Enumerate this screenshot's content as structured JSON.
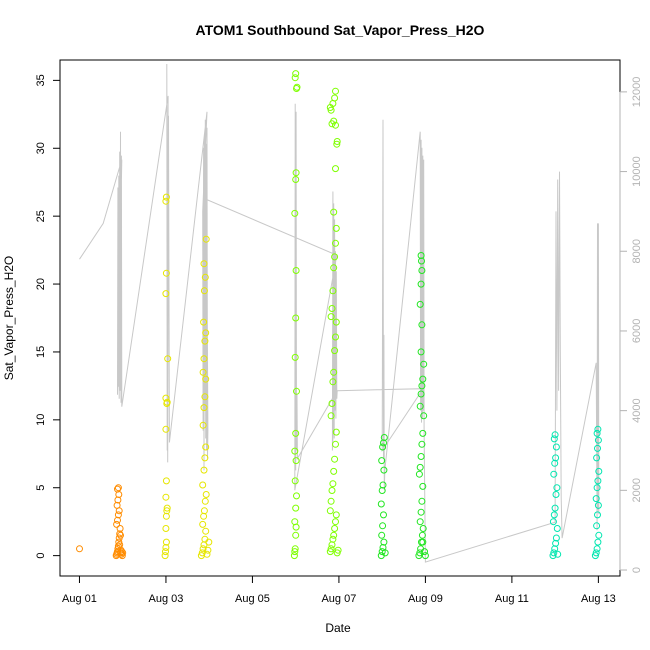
{
  "chart_data": {
    "type": "scatter",
    "title": "ATOM1 Southbound Sat_Vapor_Press_H2O",
    "xlabel": "Date",
    "ylabel": "Sat_Vapor_Press_H2O",
    "x_tick_labels": [
      "Aug 01",
      "Aug 03",
      "Aug 05",
      "Aug 07",
      "Aug 09",
      "Aug 11",
      "Aug 13"
    ],
    "x_tick_days": [
      1,
      3,
      5,
      7,
      9,
      11,
      13
    ],
    "xlim": [
      0.55,
      13.5
    ],
    "ylim": [
      -1.5,
      36.5
    ],
    "y_ticks": [
      0,
      5,
      10,
      15,
      20,
      25,
      30,
      35
    ],
    "y2lim": [
      -150,
      12800
    ],
    "y2_ticks": [
      0,
      2000,
      4000,
      6000,
      8000,
      10000,
      12000
    ],
    "grid": false,
    "colors": {
      "secondary_line": "#c8c8c8",
      "right_axis": "#b3b3b3",
      "frame": "#000000"
    },
    "series": [
      {
        "color": "#ff8c00",
        "points": [
          [
            1.0,
            0.5
          ],
          [
            1.85,
            0.0
          ],
          [
            1.86,
            0.1
          ],
          [
            1.87,
            0.2
          ],
          [
            1.88,
            0.3
          ],
          [
            1.89,
            0.5
          ],
          [
            1.9,
            0.7
          ],
          [
            1.91,
            1.0
          ],
          [
            1.92,
            1.3
          ],
          [
            1.93,
            1.6
          ],
          [
            1.94,
            2.0
          ],
          [
            1.86,
            2.3
          ],
          [
            1.88,
            2.6
          ],
          [
            1.9,
            3.0
          ],
          [
            1.92,
            3.3
          ],
          [
            1.87,
            3.7
          ],
          [
            1.89,
            4.1
          ],
          [
            1.91,
            4.5
          ],
          [
            1.88,
            4.9
          ],
          [
            1.9,
            5.0
          ],
          [
            1.95,
            0.2
          ],
          [
            1.96,
            0.4
          ],
          [
            1.97,
            0.1
          ],
          [
            1.98,
            0.3
          ],
          [
            1.99,
            0.0
          ],
          [
            2.0,
            0.2
          ],
          [
            1.93,
            0.8
          ],
          [
            1.95,
            1.5
          ]
        ]
      },
      {
        "color": "#e6e600",
        "points": [
          [
            2.98,
            0.0
          ],
          [
            2.99,
            0.3
          ],
          [
            3.0,
            0.6
          ],
          [
            3.01,
            1.0
          ],
          [
            3.0,
            2.0
          ],
          [
            3.01,
            2.9
          ],
          [
            3.02,
            3.3
          ],
          [
            3.03,
            3.5
          ],
          [
            3.0,
            4.3
          ],
          [
            3.01,
            5.5
          ],
          [
            3.0,
            9.3
          ],
          [
            3.02,
            11.2
          ],
          [
            3.0,
            11.6
          ],
          [
            3.03,
            11.3
          ],
          [
            3.04,
            14.5
          ],
          [
            3.0,
            19.3
          ],
          [
            3.01,
            20.8
          ],
          [
            3.0,
            26.1
          ],
          [
            3.01,
            26.4
          ],
          [
            3.82,
            0.0
          ],
          [
            3.84,
            0.2
          ],
          [
            3.86,
            0.5
          ],
          [
            3.88,
            0.8
          ],
          [
            3.9,
            1.2
          ],
          [
            3.92,
            1.8
          ],
          [
            3.85,
            2.3
          ],
          [
            3.87,
            2.9
          ],
          [
            3.89,
            3.3
          ],
          [
            3.91,
            4.0
          ],
          [
            3.93,
            4.5
          ],
          [
            3.85,
            5.2
          ],
          [
            3.88,
            6.3
          ],
          [
            3.9,
            7.2
          ],
          [
            3.92,
            8.0
          ],
          [
            3.86,
            9.6
          ],
          [
            3.88,
            10.9
          ],
          [
            3.9,
            11.7
          ],
          [
            3.92,
            13.0
          ],
          [
            3.86,
            13.5
          ],
          [
            3.88,
            14.5
          ],
          [
            3.9,
            15.8
          ],
          [
            3.92,
            16.4
          ],
          [
            3.87,
            17.2
          ],
          [
            3.89,
            19.5
          ],
          [
            3.91,
            20.5
          ],
          [
            3.88,
            21.5
          ],
          [
            3.93,
            23.3
          ],
          [
            3.95,
            0.1
          ],
          [
            3.97,
            0.4
          ],
          [
            3.99,
            1.0
          ]
        ]
      },
      {
        "color": "#7fff00",
        "points": [
          [
            5.97,
            0.0
          ],
          [
            5.98,
            0.3
          ],
          [
            5.99,
            0.5
          ],
          [
            6.0,
            1.5
          ],
          [
            6.01,
            2.1
          ],
          [
            5.98,
            2.5
          ],
          [
            6.0,
            3.5
          ],
          [
            6.02,
            4.4
          ],
          [
            5.99,
            5.5
          ],
          [
            6.01,
            7.0
          ],
          [
            5.98,
            7.7
          ],
          [
            6.0,
            9.0
          ],
          [
            6.02,
            12.1
          ],
          [
            5.99,
            14.6
          ],
          [
            6.0,
            17.5
          ],
          [
            6.01,
            21.0
          ],
          [
            5.98,
            25.2
          ],
          [
            6.0,
            27.7
          ],
          [
            6.01,
            28.2
          ],
          [
            6.02,
            34.4
          ],
          [
            6.03,
            34.5
          ],
          [
            5.99,
            35.2
          ],
          [
            6.0,
            35.5
          ],
          [
            6.8,
            0.3
          ],
          [
            6.82,
            0.5
          ],
          [
            6.84,
            0.8
          ],
          [
            6.86,
            1.2
          ],
          [
            6.88,
            1.5
          ],
          [
            6.9,
            2.0
          ],
          [
            6.92,
            2.5
          ],
          [
            6.94,
            3.0
          ],
          [
            6.8,
            3.3
          ],
          [
            6.82,
            4.0
          ],
          [
            6.84,
            4.8
          ],
          [
            6.86,
            5.3
          ],
          [
            6.88,
            6.2
          ],
          [
            6.9,
            7.1
          ],
          [
            6.92,
            8.2
          ],
          [
            6.94,
            9.1
          ],
          [
            6.82,
            10.3
          ],
          [
            6.84,
            11.2
          ],
          [
            6.86,
            12.8
          ],
          [
            6.88,
            13.5
          ],
          [
            6.9,
            15.1
          ],
          [
            6.92,
            16.1
          ],
          [
            6.94,
            17.2
          ],
          [
            6.82,
            17.6
          ],
          [
            6.84,
            18.2
          ],
          [
            6.86,
            19.5
          ],
          [
            6.88,
            21.2
          ],
          [
            6.9,
            22.0
          ],
          [
            6.92,
            23.0
          ],
          [
            6.94,
            24.1
          ],
          [
            6.88,
            25.3
          ],
          [
            6.92,
            28.5
          ],
          [
            6.95,
            30.3
          ],
          [
            6.96,
            30.5
          ],
          [
            6.84,
            31.8
          ],
          [
            6.88,
            32.0
          ],
          [
            6.92,
            31.7
          ],
          [
            6.82,
            32.8
          ],
          [
            6.8,
            33.0
          ],
          [
            6.86,
            33.3
          ],
          [
            6.9,
            33.7
          ],
          [
            6.92,
            34.2
          ],
          [
            6.96,
            0.2
          ],
          [
            6.98,
            0.4
          ]
        ]
      },
      {
        "color": "#22e622",
        "points": [
          [
            7.98,
            0.0
          ],
          [
            8.0,
            0.3
          ],
          [
            8.02,
            0.6
          ],
          [
            8.04,
            1.0
          ],
          [
            7.99,
            1.5
          ],
          [
            8.01,
            2.2
          ],
          [
            8.03,
            3.0
          ],
          [
            7.98,
            3.8
          ],
          [
            8.0,
            4.8
          ],
          [
            8.02,
            5.2
          ],
          [
            8.04,
            6.3
          ],
          [
            7.99,
            7.0
          ],
          [
            8.01,
            8.0
          ],
          [
            8.03,
            8.3
          ],
          [
            8.05,
            8.7
          ],
          [
            8.07,
            0.2
          ],
          [
            8.85,
            0.0
          ],
          [
            8.87,
            0.2
          ],
          [
            8.89,
            0.5
          ],
          [
            8.91,
            1.0
          ],
          [
            8.93,
            1.5
          ],
          [
            8.95,
            2.0
          ],
          [
            8.88,
            2.5
          ],
          [
            8.9,
            3.2
          ],
          [
            8.92,
            4.0
          ],
          [
            8.94,
            5.1
          ],
          [
            8.86,
            6.0
          ],
          [
            8.88,
            6.5
          ],
          [
            8.9,
            7.3
          ],
          [
            8.92,
            8.2
          ],
          [
            8.94,
            9.0
          ],
          [
            8.96,
            10.3
          ],
          [
            8.88,
            11.0
          ],
          [
            8.9,
            11.9
          ],
          [
            8.92,
            12.5
          ],
          [
            8.94,
            13.0
          ],
          [
            8.96,
            14.1
          ],
          [
            8.9,
            15.0
          ],
          [
            8.92,
            17.0
          ],
          [
            8.88,
            18.5
          ],
          [
            8.9,
            20.0
          ],
          [
            8.92,
            21.0
          ],
          [
            8.91,
            21.7
          ],
          [
            8.9,
            22.1
          ],
          [
            8.94,
            1.0
          ],
          [
            8.98,
            0.3
          ],
          [
            9.0,
            0.0
          ]
        ]
      },
      {
        "color": "#00e6b0",
        "points": [
          [
            11.95,
            0.0
          ],
          [
            11.97,
            0.2
          ],
          [
            11.99,
            0.5
          ],
          [
            12.01,
            0.9
          ],
          [
            12.03,
            1.3
          ],
          [
            12.05,
            2.0
          ],
          [
            11.96,
            2.5
          ],
          [
            11.98,
            3.0
          ],
          [
            12.0,
            3.5
          ],
          [
            12.02,
            4.5
          ],
          [
            12.04,
            5.0
          ],
          [
            11.97,
            6.0
          ],
          [
            11.99,
            6.8
          ],
          [
            12.01,
            7.2
          ],
          [
            12.03,
            8.0
          ],
          [
            11.98,
            8.6
          ],
          [
            12.0,
            8.9
          ],
          [
            12.06,
            0.1
          ],
          [
            12.93,
            0.0
          ],
          [
            12.95,
            0.2
          ],
          [
            12.97,
            0.5
          ],
          [
            12.99,
            1.0
          ],
          [
            13.01,
            1.5
          ],
          [
            12.96,
            2.2
          ],
          [
            12.98,
            3.0
          ],
          [
            13.0,
            3.7
          ],
          [
            12.95,
            4.2
          ],
          [
            12.97,
            5.0
          ],
          [
            12.99,
            5.5
          ],
          [
            13.01,
            6.2
          ],
          [
            12.96,
            7.2
          ],
          [
            12.98,
            7.9
          ],
          [
            13.0,
            8.5
          ],
          [
            12.97,
            9.0
          ],
          [
            12.99,
            9.3
          ]
        ]
      }
    ],
    "secondary_series": {
      "axis": "right",
      "points": [
        [
          1.0,
          7800
        ],
        [
          1.55,
          8700
        ],
        [
          1.98,
          10300
        ],
        [
          1.88,
          4400
        ],
        [
          1.89,
          9600
        ],
        [
          1.9,
          4600
        ],
        [
          1.91,
          9900
        ],
        [
          1.92,
          4300
        ],
        [
          1.93,
          10500
        ],
        [
          1.94,
          4500
        ],
        [
          1.95,
          11000
        ],
        [
          1.96,
          4200
        ],
        [
          1.97,
          10400
        ],
        [
          1.98,
          4100
        ],
        [
          3.05,
          11900
        ],
        [
          3.03,
          3000
        ],
        [
          3.02,
          12700
        ],
        [
          3.04,
          2700
        ],
        [
          3.06,
          11400
        ],
        [
          3.08,
          3200
        ],
        [
          3.95,
          11500
        ],
        [
          3.85,
          9000
        ],
        [
          3.86,
          3500
        ],
        [
          3.87,
          10600
        ],
        [
          3.88,
          2500
        ],
        [
          3.89,
          10900
        ],
        [
          3.9,
          4000
        ],
        [
          3.91,
          11300
        ],
        [
          3.92,
          3300
        ],
        [
          3.93,
          10700
        ],
        [
          3.94,
          3000
        ],
        [
          3.95,
          11100
        ],
        [
          3.96,
          2800
        ],
        [
          3.97,
          3500
        ],
        [
          3.94,
          9300
        ],
        [
          6.95,
          7900
        ],
        [
          5.98,
          2000
        ],
        [
          5.99,
          11700
        ],
        [
          6.0,
          2500
        ],
        [
          6.01,
          11500
        ],
        [
          6.02,
          3000
        ],
        [
          6.03,
          4400
        ],
        [
          6.04,
          2800
        ],
        [
          6.9,
          4400
        ],
        [
          6.85,
          3000
        ],
        [
          6.86,
          9500
        ],
        [
          6.87,
          3500
        ],
        [
          6.88,
          9200
        ],
        [
          6.89,
          3300
        ],
        [
          6.9,
          8800
        ],
        [
          6.91,
          4000
        ],
        [
          6.92,
          8000
        ],
        [
          6.93,
          3800
        ],
        [
          6.94,
          7500
        ],
        [
          6.95,
          4300
        ],
        [
          6.96,
          4500
        ],
        [
          8.95,
          4550
        ],
        [
          8.0,
          3000
        ],
        [
          8.02,
          11300
        ],
        [
          8.03,
          2800
        ],
        [
          8.04,
          5900
        ],
        [
          8.05,
          2000
        ],
        [
          8.06,
          2500
        ],
        [
          8.88,
          11000
        ],
        [
          8.89,
          4000
        ],
        [
          8.9,
          10800
        ],
        [
          8.91,
          3700
        ],
        [
          8.92,
          10600
        ],
        [
          8.93,
          3800
        ],
        [
          8.94,
          10400
        ],
        [
          8.95,
          4000
        ],
        [
          8.96,
          10300
        ],
        [
          8.97,
          3500
        ],
        [
          9.0,
          200
        ],
        [
          12.0,
          1200
        ],
        [
          12.02,
          9000
        ],
        [
          12.04,
          4000
        ],
        [
          12.06,
          9800
        ],
        [
          12.08,
          4500
        ],
        [
          12.1,
          10000
        ],
        [
          12.12,
          5500
        ],
        [
          12.14,
          1800
        ],
        [
          12.16,
          800
        ],
        [
          12.95,
          5200
        ],
        [
          12.97,
          1000
        ],
        [
          12.98,
          8700
        ],
        [
          12.99,
          1500
        ],
        [
          13.0,
          8700
        ],
        [
          13.01,
          1400
        ],
        [
          13.0,
          5300
        ]
      ]
    }
  }
}
